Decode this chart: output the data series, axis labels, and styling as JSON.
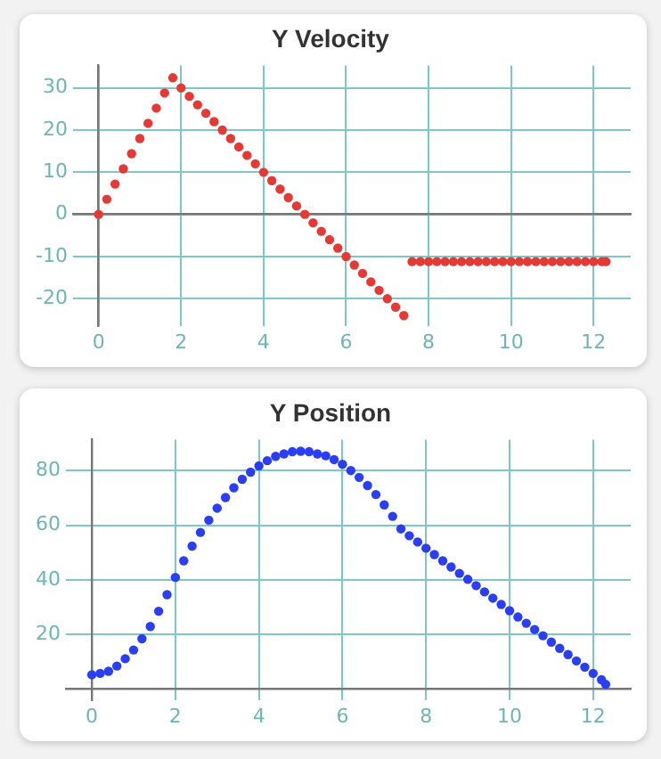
{
  "chart_data": [
    {
      "type": "scatter",
      "title": "Y Velocity",
      "x": [
        0,
        0.2,
        0.4,
        0.6,
        0.8,
        1.0,
        1.2,
        1.4,
        1.6,
        1.8,
        2.0,
        2.2,
        2.4,
        2.6,
        2.8,
        3.0,
        3.2,
        3.4,
        3.6,
        3.8,
        4.0,
        4.2,
        4.4,
        4.6,
        4.8,
        5.0,
        5.2,
        5.4,
        5.6,
        5.8,
        6.0,
        6.2,
        6.4,
        6.6,
        6.8,
        7.0,
        7.2,
        7.4,
        7.6,
        7.8,
        8.0,
        8.2,
        8.4,
        8.6,
        8.8,
        9.0,
        9.2,
        9.4,
        9.6,
        9.8,
        10.0,
        10.2,
        10.4,
        10.6,
        10.8,
        11.0,
        11.2,
        11.4,
        11.6,
        11.8,
        12.0,
        12.2,
        12.3
      ],
      "series": [
        {
          "color": "#e53935",
          "values": [
            0,
            3.6,
            7.2,
            10.8,
            14.4,
            18,
            21.6,
            25.2,
            28.8,
            32.4,
            30,
            28,
            26,
            24,
            22,
            20,
            18,
            16,
            14,
            12,
            10,
            8,
            6,
            4,
            2,
            0,
            -2,
            -4,
            -6,
            -8,
            -10,
            -12,
            -14,
            -16,
            -18,
            -20,
            -22,
            -24,
            -11.2,
            -11.2,
            -11.2,
            -11.2,
            -11.2,
            -11.2,
            -11.2,
            -11.2,
            -11.2,
            -11.2,
            -11.2,
            -11.2,
            -11.2,
            -11.2,
            -11.2,
            -11.2,
            -11.2,
            -11.2,
            -11.2,
            -11.2,
            -11.2,
            -11.2,
            -11.2,
            -11.2,
            -11.2
          ]
        }
      ],
      "xlim": [
        -0.62,
        12.9
      ],
      "xticks": [
        0,
        2,
        4,
        6,
        8,
        10,
        12
      ],
      "ylim": [
        -26.4,
        35.3
      ],
      "yticks": [
        -20,
        -10,
        0,
        10,
        20,
        30
      ],
      "grid": true,
      "legend": false,
      "marker": "circle"
    },
    {
      "type": "scatter",
      "title": "Y Position",
      "x": [
        0,
        0.2,
        0.4,
        0.6,
        0.8,
        1.0,
        1.2,
        1.4,
        1.6,
        1.8,
        2.0,
        2.2,
        2.4,
        2.6,
        2.8,
        3.0,
        3.2,
        3.4,
        3.6,
        3.8,
        4.0,
        4.2,
        4.4,
        4.6,
        4.8,
        5.0,
        5.2,
        5.4,
        5.6,
        5.8,
        6.0,
        6.2,
        6.4,
        6.6,
        6.8,
        7.0,
        7.2,
        7.4,
        7.6,
        7.8,
        8.0,
        8.2,
        8.4,
        8.6,
        8.8,
        9.0,
        9.2,
        9.4,
        9.6,
        9.8,
        10.0,
        10.2,
        10.4,
        10.6,
        10.8,
        11.0,
        11.2,
        11.4,
        11.6,
        11.8,
        12.0,
        12.2,
        12.3
      ],
      "series": [
        {
          "color": "#2a3ff5",
          "values": [
            5.2,
            5.7,
            6.5,
            8.4,
            11.1,
            14.3,
            18.4,
            22.9,
            28.5,
            34.6,
            40.9,
            47,
            52.4,
            57.4,
            61.9,
            66.3,
            70.2,
            73.8,
            76.9,
            79.5,
            81.8,
            83.7,
            85.3,
            86.2,
            87,
            87.2,
            87,
            86.2,
            85.5,
            84.1,
            82.4,
            80.1,
            77.6,
            74.6,
            71.3,
            67.5,
            63.3,
            58.7,
            56.2,
            53.9,
            51.6,
            49.3,
            47,
            44.7,
            42.4,
            40.2,
            37.9,
            35.6,
            33.3,
            31,
            28.7,
            26.4,
            24.1,
            21.8,
            19.5,
            17.2,
            14.9,
            12.6,
            10.3,
            8,
            5.7,
            3.4,
            1.7
          ]
        }
      ],
      "xlim": [
        -0.62,
        12.9
      ],
      "xticks": [
        0,
        2,
        4,
        6,
        8,
        10,
        12
      ],
      "ylim": [
        -4,
        91.4
      ],
      "yticks": [
        20,
        40,
        60,
        80
      ],
      "grid": true,
      "legend": false,
      "marker": "circle"
    }
  ]
}
